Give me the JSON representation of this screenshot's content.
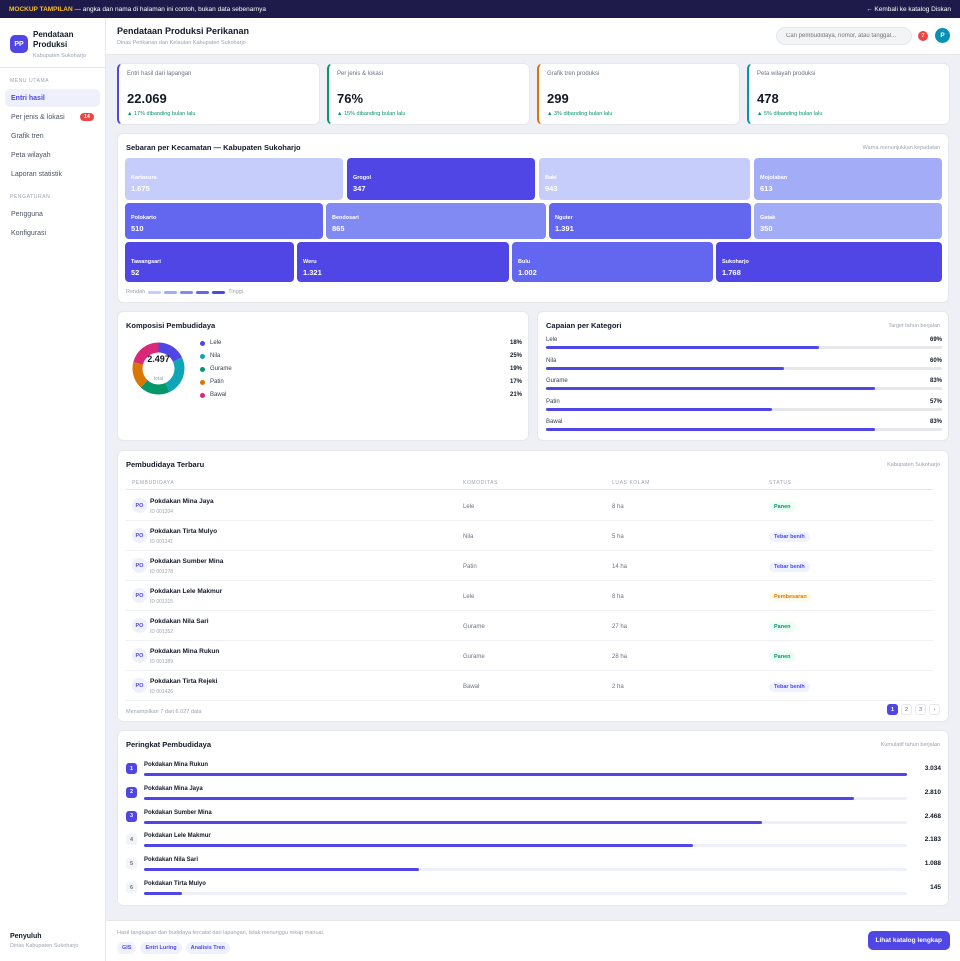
{
  "banner": {
    "tag": "MOCKUP TAMPILAN",
    "text": "— angka dan nama di halaman ini contoh, bukan data sebenarnya",
    "back_link": "← Kembali ke katalog Diskan"
  },
  "brand": {
    "logo": "PP",
    "title": "Pendataan Produksi",
    "subtitle": "Kabupaten Sukoharjo"
  },
  "sidebar": {
    "section_main": "MENU UTAMA",
    "main_items": [
      {
        "label": "Entri hasil",
        "active": true
      },
      {
        "label": "Per jenis & lokasi",
        "badge": "14"
      },
      {
        "label": "Grafik tren"
      },
      {
        "label": "Peta wilayah"
      },
      {
        "label": "Laporan statistik"
      }
    ],
    "section_settings": "PENGATURAN",
    "settings_items": [
      {
        "label": "Pengguna"
      },
      {
        "label": "Konfigurasi"
      }
    ],
    "footer_title": "Penyuluh",
    "footer_sub": "Dinas Kabupaten Sukoharjo"
  },
  "header": {
    "title": "Pendataan Produksi Perikanan",
    "subtitle": "Dinas Perikanan dan Kelautan Kabupaten Sukoharjo",
    "search_placeholder": "Cari pembudidaya, nomor, atau tanggal...",
    "notif_count": "7",
    "avatar": "P"
  },
  "stats": [
    {
      "label": "Entri hasil dari lapangan",
      "value": "22.069",
      "change": "▲ 17% dibanding bulan lalu",
      "accent": "#4f46e5"
    },
    {
      "label": "Per jenis & lokasi",
      "value": "76%",
      "change": "▲ 15% dibanding bulan lalu",
      "accent": "#059669"
    },
    {
      "label": "Grafik tren produksi",
      "value": "299",
      "change": "▲ 3% dibanding bulan lalu",
      "accent": "#d97706"
    },
    {
      "label": "Peta wilayah produksi",
      "value": "478",
      "change": "▲ 5% dibanding bulan lalu",
      "accent": "#0891b2"
    }
  ],
  "treemap": {
    "title": "Sebaran per Kecamatan — Kabupaten Sukoharjo",
    "note": "Warna menunjukkan kepadatan",
    "legend_low": "Rendah",
    "legend_high": "Tinggi",
    "legend_colors": [
      "#c7cdfb",
      "#a3acf7",
      "#8189f2",
      "#6366ee",
      "#4f46e5"
    ],
    "rows": [
      [
        {
          "name": "Kartasura",
          "value": "1.675",
          "color": "#c7cdfb"
        },
        {
          "name": "Grogol",
          "value": "347",
          "color": "#4f46e5"
        },
        {
          "name": "Baki",
          "value": "943",
          "color": "#c7cdfb"
        },
        {
          "name": "Mojolaban",
          "value": "613",
          "color": "#a3acf7"
        }
      ],
      [
        {
          "name": "Polokarto",
          "value": "510",
          "color": "#6366ee"
        },
        {
          "name": "Bendosari",
          "value": "865",
          "color": "#8189f2"
        },
        {
          "name": "Nguter",
          "value": "1.391",
          "color": "#6366ee"
        },
        {
          "name": "Gatak",
          "value": "350",
          "color": "#a3acf7"
        }
      ],
      [
        {
          "name": "Tawangsari",
          "value": "52",
          "color": "#4f46e5"
        },
        {
          "name": "Weru",
          "value": "1.321",
          "color": "#4f46e5"
        },
        {
          "name": "Bulu",
          "value": "1.002",
          "color": "#6366ee"
        },
        {
          "name": "Sukoharjo",
          "value": "1.768",
          "color": "#4f46e5"
        }
      ]
    ]
  },
  "composition": {
    "title": "Komposisi Pembudidaya",
    "total": "2.497",
    "total_label": "total",
    "items": [
      {
        "label": "Lele",
        "pct": "18%",
        "share": 18,
        "color": "#4f46e5"
      },
      {
        "label": "Nila",
        "pct": "25%",
        "share": 25,
        "color": "#0ea5b7"
      },
      {
        "label": "Gurame",
        "pct": "19%",
        "share": 19,
        "color": "#059669"
      },
      {
        "label": "Patin",
        "pct": "17%",
        "share": 17,
        "color": "#d97706"
      },
      {
        "label": "Bawal",
        "pct": "21%",
        "share": 21,
        "color": "#db2777"
      }
    ]
  },
  "achievement": {
    "title": "Capaian per Kategori",
    "note": "Target tahun berjalan",
    "items": [
      {
        "label": "Lele",
        "pct": "69%",
        "value": 69
      },
      {
        "label": "Nila",
        "pct": "60%",
        "value": 60
      },
      {
        "label": "Gurame",
        "pct": "83%",
        "value": 83
      },
      {
        "label": "Patin",
        "pct": "57%",
        "value": 57
      },
      {
        "label": "Bawal",
        "pct": "83%",
        "value": 83
      }
    ]
  },
  "table": {
    "title": "Pembudidaya Terbaru",
    "note": "Kabupaten Sukoharjo",
    "columns": [
      "PEMBUDIDAYA",
      "KOMODITAS",
      "LUAS KOLAM",
      "STATUS"
    ],
    "rows": [
      {
        "initials": "PO",
        "name": "Pokdakan Mina Jaya",
        "id": "ID 001204",
        "commodity": "Lele",
        "area": "8 ha",
        "status": "Panen",
        "kind": "panen"
      },
      {
        "initials": "PO",
        "name": "Pokdakan Tirta Mulyo",
        "id": "ID 001241",
        "commodity": "Nila",
        "area": "5 ha",
        "status": "Tebar benih",
        "kind": "tebar"
      },
      {
        "initials": "PO",
        "name": "Pokdakan Sumber Mina",
        "id": "ID 001278",
        "commodity": "Patin",
        "area": "14 ha",
        "status": "Tebar benih",
        "kind": "tebar"
      },
      {
        "initials": "PO",
        "name": "Pokdakan Lele Makmur",
        "id": "ID 001315",
        "commodity": "Lele",
        "area": "8 ha",
        "status": "Pembesaran",
        "kind": "besar"
      },
      {
        "initials": "PO",
        "name": "Pokdakan Nila Sari",
        "id": "ID 001352",
        "commodity": "Gurame",
        "area": "27 ha",
        "status": "Panen",
        "kind": "panen"
      },
      {
        "initials": "PO",
        "name": "Pokdakan Mina Rukun",
        "id": "ID 001389",
        "commodity": "Gurame",
        "area": "28 ha",
        "status": "Panen",
        "kind": "panen"
      },
      {
        "initials": "PO",
        "name": "Pokdakan Tirta Rejeki",
        "id": "ID 001426",
        "commodity": "Bawal",
        "area": "2 ha",
        "status": "Tebar benih",
        "kind": "tebar"
      }
    ],
    "footer": "Menampilkan 7 dari 6.027 data",
    "pages": [
      "1",
      "2",
      "3",
      "›"
    ]
  },
  "ranking": {
    "title": "Peringkat Pembudidaya",
    "note": "Kumulatif tahun berjalan",
    "items": [
      {
        "rank": "1",
        "name": "Pokdakan Mina Rukun",
        "value": "3.034",
        "share": 100
      },
      {
        "rank": "2",
        "name": "Pokdakan Mina Jaya",
        "value": "2.810",
        "share": 93
      },
      {
        "rank": "3",
        "name": "Pokdakan Sumber Mina",
        "value": "2.468",
        "share": 81
      },
      {
        "rank": "4",
        "name": "Pokdakan Lele Makmur",
        "value": "2.183",
        "share": 72
      },
      {
        "rank": "5",
        "name": "Pokdakan Nila Sari",
        "value": "1.088",
        "share": 36
      },
      {
        "rank": "6",
        "name": "Pokdakan Tirta Mulyo",
        "value": "145",
        "share": 5
      }
    ]
  },
  "footer": {
    "note": "Hasil tangkapan dan budidaya tercatat dari lapangan, tidak menunggu rekap manual.",
    "chips": [
      "GIS",
      "Entri Luring",
      "Analisis Tren"
    ],
    "cta": "Lihat katalog lengkap"
  }
}
